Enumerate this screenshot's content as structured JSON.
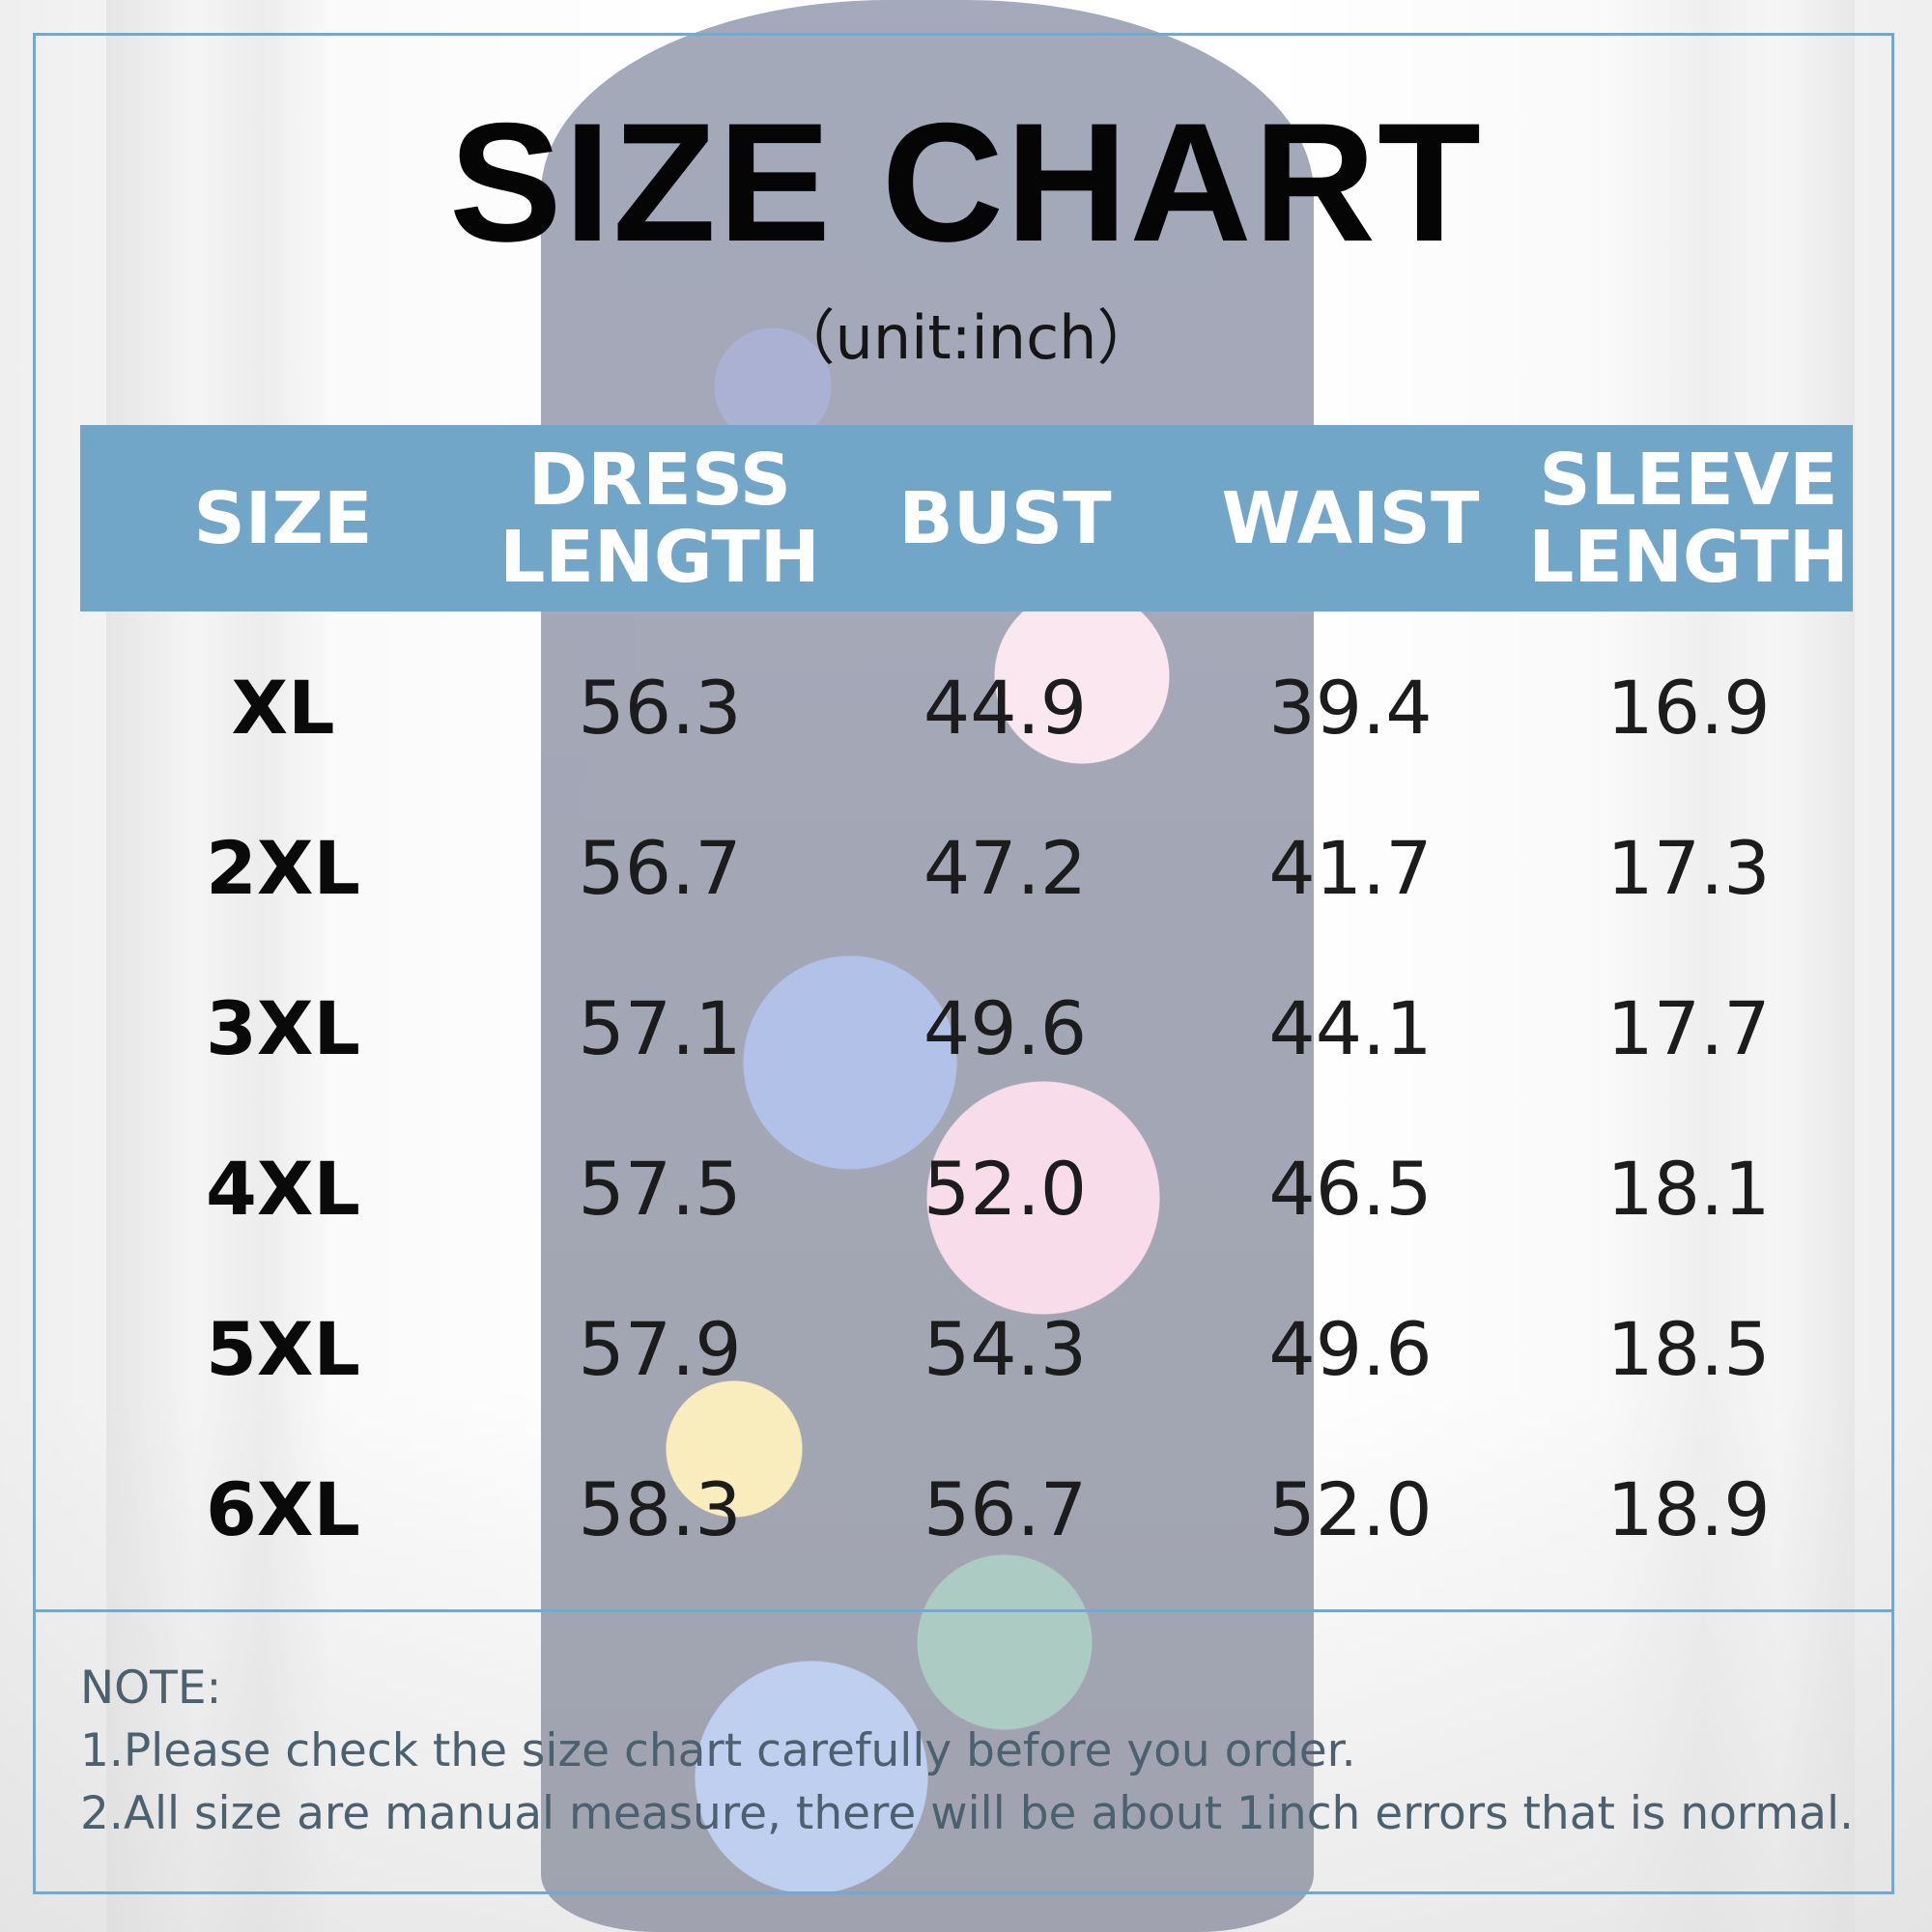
{
  "title": "SIZE CHART",
  "unit": "（unit:inch）",
  "table": {
    "headers": [
      {
        "line1": "SIZE",
        "line2": ""
      },
      {
        "line1": "DRESS",
        "line2": "LENGTH"
      },
      {
        "line1": "BUST",
        "line2": ""
      },
      {
        "line1": "WAIST",
        "line2": ""
      },
      {
        "line1": "SLEEVE",
        "line2": "LENGTH"
      }
    ],
    "rows": [
      [
        "XL",
        "56.3",
        "44.9",
        "39.4",
        "16.9"
      ],
      [
        "2XL",
        "56.7",
        "47.2",
        "41.7",
        "17.3"
      ],
      [
        "3XL",
        "57.1",
        "49.6",
        "44.1",
        "17.7"
      ],
      [
        "4XL",
        "57.5",
        "52.0",
        "46.5",
        "18.1"
      ],
      [
        "5XL",
        "57.9",
        "54.3",
        "49.6",
        "18.5"
      ],
      [
        "6XL",
        "58.3",
        "56.7",
        "52.0",
        "18.9"
      ]
    ]
  },
  "notes": {
    "heading": "NOTE:",
    "line1": "1.Please check the size chart carefully before you order.",
    "line2": "2.All size are manual measure, there will be about 1inch errors that is normal."
  },
  "colors": {
    "header_bg": "#72a6c8",
    "border": "#7aa7c7",
    "note_text": "#4b6170"
  }
}
